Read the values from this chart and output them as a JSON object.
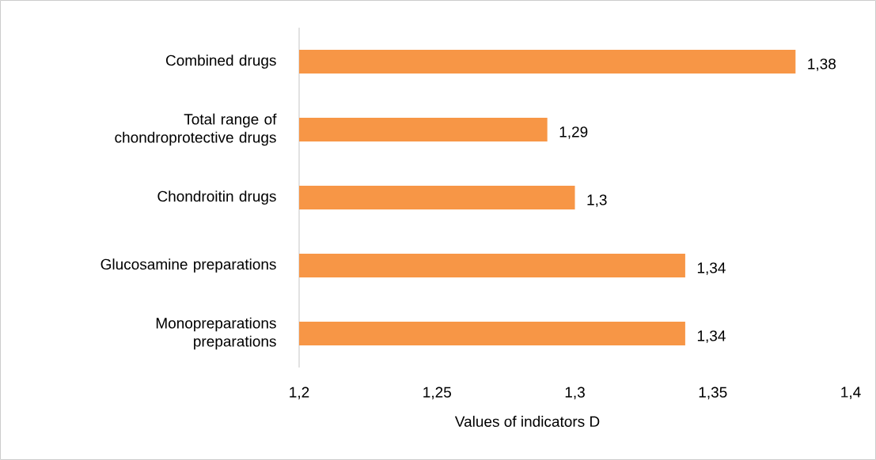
{
  "chart_data": {
    "type": "bar",
    "orientation": "horizontal",
    "xlabel": "Values of indicators D",
    "categories": [
      "Combined drugs",
      "Total range of chondroprotective drugs",
      "Chondroitin drugs",
      "Glucosamine preparations",
      "Monopreparations preparations"
    ],
    "values": [
      1.38,
      1.29,
      1.3,
      1.34,
      1.34
    ],
    "value_labels": [
      "1,38",
      "1,29",
      "1,3",
      "1,34",
      "1,34"
    ],
    "color": "#f79646",
    "xlim": [
      1.2,
      1.4
    ],
    "xticks": [
      {
        "value": 1.2,
        "label": "1,2"
      },
      {
        "value": 1.25,
        "label": "1,25"
      },
      {
        "value": 1.3,
        "label": "1,3"
      },
      {
        "value": 1.35,
        "label": "1,35"
      },
      {
        "value": 1.4,
        "label": "1,4"
      }
    ],
    "grid": false
  }
}
